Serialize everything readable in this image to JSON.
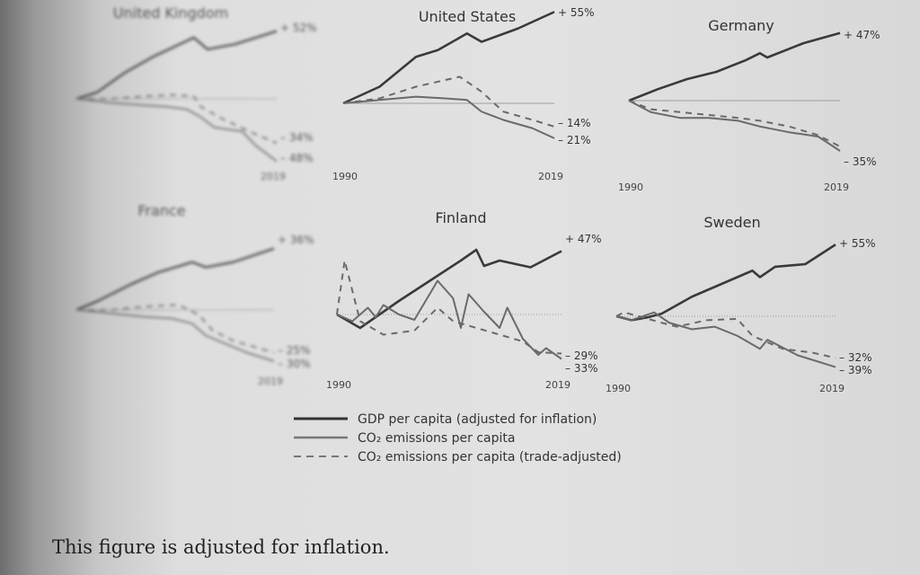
{
  "chart_data": [
    {
      "type": "line",
      "title": "United Kingdom",
      "x_start_label": "",
      "x_end_label": "2019",
      "end_labels": [
        "+ 52%",
        "– 34%",
        "– 48%"
      ],
      "series": [
        {
          "key": "gdp",
          "points": [
            [
              1990,
              0
            ],
            [
              1993,
              5
            ],
            [
              1997,
              20
            ],
            [
              2001,
              32
            ],
            [
              2005,
              42
            ],
            [
              2007,
              47
            ],
            [
              2009,
              38
            ],
            [
              2013,
              42
            ],
            [
              2019,
              52
            ]
          ]
        },
        {
          "key": "co2",
          "points": [
            [
              1990,
              0
            ],
            [
              1995,
              -3
            ],
            [
              2000,
              -5
            ],
            [
              2003,
              -6
            ],
            [
              2006,
              -8
            ],
            [
              2008,
              -14
            ],
            [
              2010,
              -22
            ],
            [
              2014,
              -25
            ],
            [
              2016,
              -36
            ],
            [
              2019,
              -48
            ]
          ]
        },
        {
          "key": "co2_trade",
          "points": [
            [
              1990,
              0
            ],
            [
              1995,
              0
            ],
            [
              2000,
              2
            ],
            [
              2004,
              3
            ],
            [
              2007,
              2
            ],
            [
              2008,
              -6
            ],
            [
              2011,
              -15
            ],
            [
              2015,
              -25
            ],
            [
              2019,
              -34
            ]
          ]
        }
      ]
    },
    {
      "type": "line",
      "title": "United States",
      "x_start_label": "1990",
      "x_end_label": "2019",
      "end_labels": [
        "+ 55%",
        "– 14%",
        "– 21%"
      ],
      "series": [
        {
          "key": "gdp",
          "points": [
            [
              1990,
              0
            ],
            [
              1995,
              10
            ],
            [
              2000,
              28
            ],
            [
              2003,
              32
            ],
            [
              2007,
              42
            ],
            [
              2009,
              37
            ],
            [
              2014,
              45
            ],
            [
              2019,
              55
            ]
          ]
        },
        {
          "key": "co2",
          "points": [
            [
              1990,
              0
            ],
            [
              1995,
              2
            ],
            [
              2000,
              4
            ],
            [
              2004,
              3
            ],
            [
              2007,
              2
            ],
            [
              2009,
              -5
            ],
            [
              2012,
              -10
            ],
            [
              2016,
              -15
            ],
            [
              2019,
              -21
            ]
          ]
        },
        {
          "key": "co2_trade",
          "points": [
            [
              1990,
              0
            ],
            [
              1995,
              3
            ],
            [
              2000,
              10
            ],
            [
              2003,
              13
            ],
            [
              2006,
              16
            ],
            [
              2009,
              7
            ],
            [
              2012,
              -5
            ],
            [
              2016,
              -10
            ],
            [
              2019,
              -14
            ]
          ]
        }
      ]
    },
    {
      "type": "line",
      "title": "Germany",
      "x_start_label": "1990",
      "x_end_label": "2019",
      "end_labels": [
        "+ 47%",
        "– 35%"
      ],
      "series": [
        {
          "key": "gdp",
          "points": [
            [
              1990,
              0
            ],
            [
              1994,
              8
            ],
            [
              1998,
              15
            ],
            [
              2002,
              20
            ],
            [
              2006,
              28
            ],
            [
              2008,
              33
            ],
            [
              2009,
              30
            ],
            [
              2014,
              40
            ],
            [
              2019,
              47
            ]
          ]
        },
        {
          "key": "co2",
          "points": [
            [
              1990,
              0
            ],
            [
              1993,
              -8
            ],
            [
              1997,
              -12
            ],
            [
              2001,
              -12
            ],
            [
              2005,
              -14
            ],
            [
              2008,
              -18
            ],
            [
              2012,
              -22
            ],
            [
              2016,
              -25
            ],
            [
              2019,
              -35
            ]
          ]
        },
        {
          "key": "co2_trade",
          "points": [
            [
              1990,
              0
            ],
            [
              1993,
              -6
            ],
            [
              1997,
              -8
            ],
            [
              2001,
              -10
            ],
            [
              2005,
              -12
            ],
            [
              2008,
              -14
            ],
            [
              2012,
              -18
            ],
            [
              2016,
              -24
            ],
            [
              2019,
              -32
            ]
          ]
        }
      ]
    },
    {
      "type": "line",
      "title": "France",
      "x_start_label": "",
      "x_end_label": "2019",
      "end_labels": [
        "+ 36%",
        "– 25%",
        "– 30%"
      ],
      "series": [
        {
          "key": "gdp",
          "points": [
            [
              1990,
              0
            ],
            [
              1993,
              5
            ],
            [
              1998,
              15
            ],
            [
              2002,
              22
            ],
            [
              2007,
              28
            ],
            [
              2009,
              25
            ],
            [
              2013,
              28
            ],
            [
              2019,
              36
            ]
          ]
        },
        {
          "key": "co2",
          "points": [
            [
              1990,
              0
            ],
            [
              1995,
              -2
            ],
            [
              2000,
              -4
            ],
            [
              2004,
              -5
            ],
            [
              2007,
              -8
            ],
            [
              2009,
              -15
            ],
            [
              2012,
              -20
            ],
            [
              2015,
              -25
            ],
            [
              2019,
              -30
            ]
          ]
        },
        {
          "key": "co2_trade",
          "points": [
            [
              1990,
              0
            ],
            [
              1995,
              0
            ],
            [
              2000,
              2
            ],
            [
              2005,
              3
            ],
            [
              2008,
              -3
            ],
            [
              2010,
              -12
            ],
            [
              2013,
              -18
            ],
            [
              2019,
              -25
            ]
          ]
        }
      ]
    },
    {
      "type": "line",
      "title": "Finland",
      "x_start_label": "1990",
      "x_end_label": "2019",
      "end_labels": [
        "+ 47%",
        "– 29%",
        "– 33%"
      ],
      "series": [
        {
          "key": "gdp",
          "points": [
            [
              1990,
              0
            ],
            [
              1993,
              -10
            ],
            [
              1998,
              10
            ],
            [
              2002,
              25
            ],
            [
              2006,
              40
            ],
            [
              2008,
              48
            ],
            [
              2009,
              36
            ],
            [
              2011,
              40
            ],
            [
              2015,
              35
            ],
            [
              2019,
              47
            ]
          ]
        },
        {
          "key": "co2",
          "points": [
            [
              1990,
              0
            ],
            [
              1992,
              -5
            ],
            [
              1994,
              5
            ],
            [
              1995,
              -2
            ],
            [
              1996,
              7
            ],
            [
              1998,
              0
            ],
            [
              2000,
              -4
            ],
            [
              2003,
              25
            ],
            [
              2005,
              12
            ],
            [
              2006,
              -10
            ],
            [
              2007,
              15
            ],
            [
              2009,
              2
            ],
            [
              2011,
              -10
            ],
            [
              2012,
              5
            ],
            [
              2014,
              -18
            ],
            [
              2016,
              -30
            ],
            [
              2017,
              -25
            ],
            [
              2019,
              -33
            ]
          ]
        },
        {
          "key": "co2_trade",
          "points": [
            [
              1990,
              0
            ],
            [
              1991,
              40
            ],
            [
              1993,
              -5
            ],
            [
              1996,
              -15
            ],
            [
              2000,
              -12
            ],
            [
              2003,
              5
            ],
            [
              2005,
              -5
            ],
            [
              2008,
              -10
            ],
            [
              2011,
              -15
            ],
            [
              2014,
              -20
            ],
            [
              2016,
              -28
            ],
            [
              2019,
              -29
            ]
          ]
        }
      ]
    },
    {
      "type": "line",
      "title": "Sweden",
      "x_start_label": "1990",
      "x_end_label": "2019",
      "end_labels": [
        "+ 55%",
        "– 32%",
        "– 39%"
      ],
      "series": [
        {
          "key": "gdp",
          "points": [
            [
              1990,
              0
            ],
            [
              1992,
              -3
            ],
            [
              1994,
              -1
            ],
            [
              1996,
              2
            ],
            [
              2000,
              15
            ],
            [
              2004,
              25
            ],
            [
              2008,
              35
            ],
            [
              2009,
              30
            ],
            [
              2011,
              38
            ],
            [
              2015,
              40
            ],
            [
              2019,
              55
            ]
          ]
        },
        {
          "key": "co2",
          "points": [
            [
              1990,
              0
            ],
            [
              1992,
              -3
            ],
            [
              1995,
              3
            ],
            [
              1997,
              -5
            ],
            [
              2000,
              -10
            ],
            [
              2003,
              -8
            ],
            [
              2006,
              -15
            ],
            [
              2009,
              -25
            ],
            [
              2010,
              -18
            ],
            [
              2014,
              -30
            ],
            [
              2019,
              -39
            ]
          ]
        },
        {
          "key": "co2_trade",
          "points": [
            [
              1990,
              0
            ],
            [
              1991,
              3
            ],
            [
              1993,
              0
            ],
            [
              1996,
              -5
            ],
            [
              1998,
              -8
            ],
            [
              2002,
              -3
            ],
            [
              2006,
              -2
            ],
            [
              2008,
              -15
            ],
            [
              2012,
              -25
            ],
            [
              2016,
              -28
            ],
            [
              2019,
              -32
            ]
          ]
        }
      ]
    }
  ],
  "legend": {
    "gdp": "GDP per capita (adjusted for inflation)",
    "co2": "CO₂ emissions per capita",
    "co2_trade": "CO₂ emissions per capita (trade-adjusted)"
  },
  "caption": "This figure is adjusted for inflation.",
  "colors": {
    "gdp": "#3a3a3a",
    "co2": "#6a6a6a",
    "co2_trade": "#6a6a6a"
  }
}
